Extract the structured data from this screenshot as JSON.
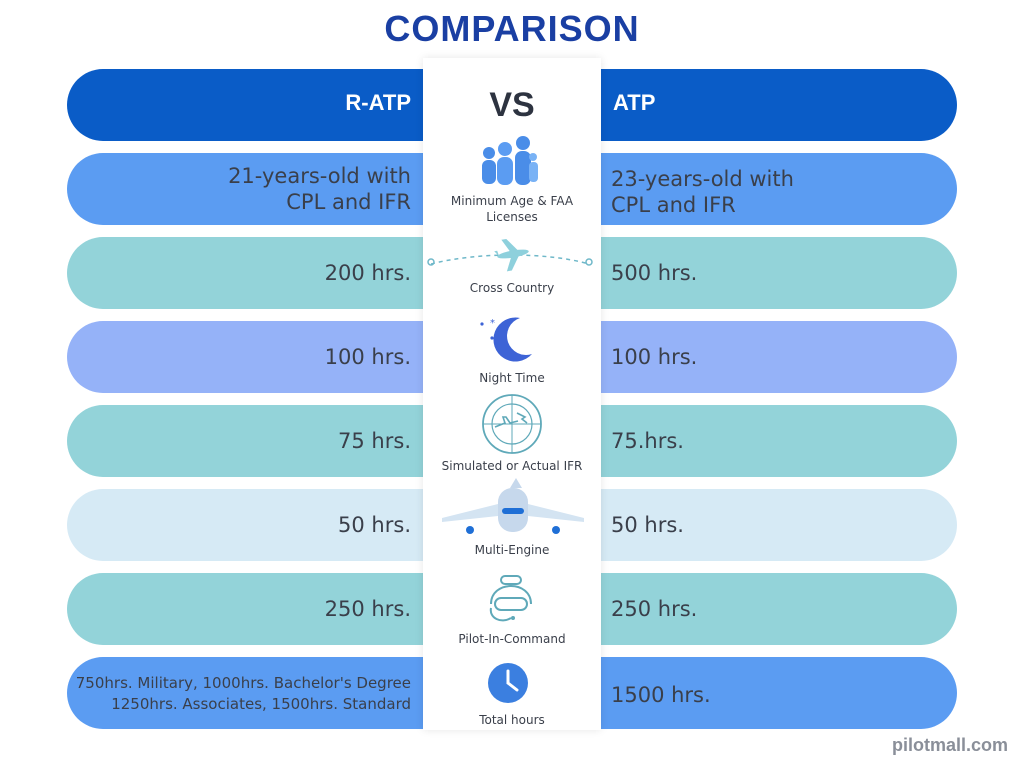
{
  "title": "COMPARISON",
  "header": {
    "left": "R-ATP",
    "vs": "VS",
    "right": "ATP"
  },
  "rows": [
    {
      "left": "21-years-old with\nCPL and IFR",
      "label": "Minimum Age & FAA\nLicenses",
      "right": "23-years-old with\nCPL and IFR",
      "icon": "family-icon",
      "color": "#5b9cf2"
    },
    {
      "left": "200 hrs.",
      "label": "Cross Country",
      "right": "500 hrs.",
      "icon": "flight-route-icon",
      "color": "#93d3d9"
    },
    {
      "left": "100 hrs.",
      "label": "Night Time",
      "right": "100 hrs.",
      "icon": "moon-icon",
      "color": "#95b2f8"
    },
    {
      "left": "75 hrs.",
      "label": "Simulated or Actual IFR",
      "right": "75.hrs.",
      "icon": "radar-icon",
      "color": "#93d3d9"
    },
    {
      "left": "50 hrs.",
      "label": "Multi-Engine",
      "right": "50 hrs.",
      "icon": "airplane-icon",
      "color": "#d6eaf5"
    },
    {
      "left": "250 hrs.",
      "label": "Pilot-In-Command",
      "right": "250 hrs.",
      "icon": "pilot-helmet-icon",
      "color": "#93d3d9"
    },
    {
      "left": "750hrs. Military, 1000hrs. Bachelor's Degree\n1250hrs. Associates, 1500hrs. Standard",
      "label": "Total hours",
      "right": "1500 hrs.",
      "icon": "clock-icon",
      "color": "#5b9cf2"
    }
  ],
  "header_color": "#0a5cc7",
  "watermark": "pilotmall.com"
}
